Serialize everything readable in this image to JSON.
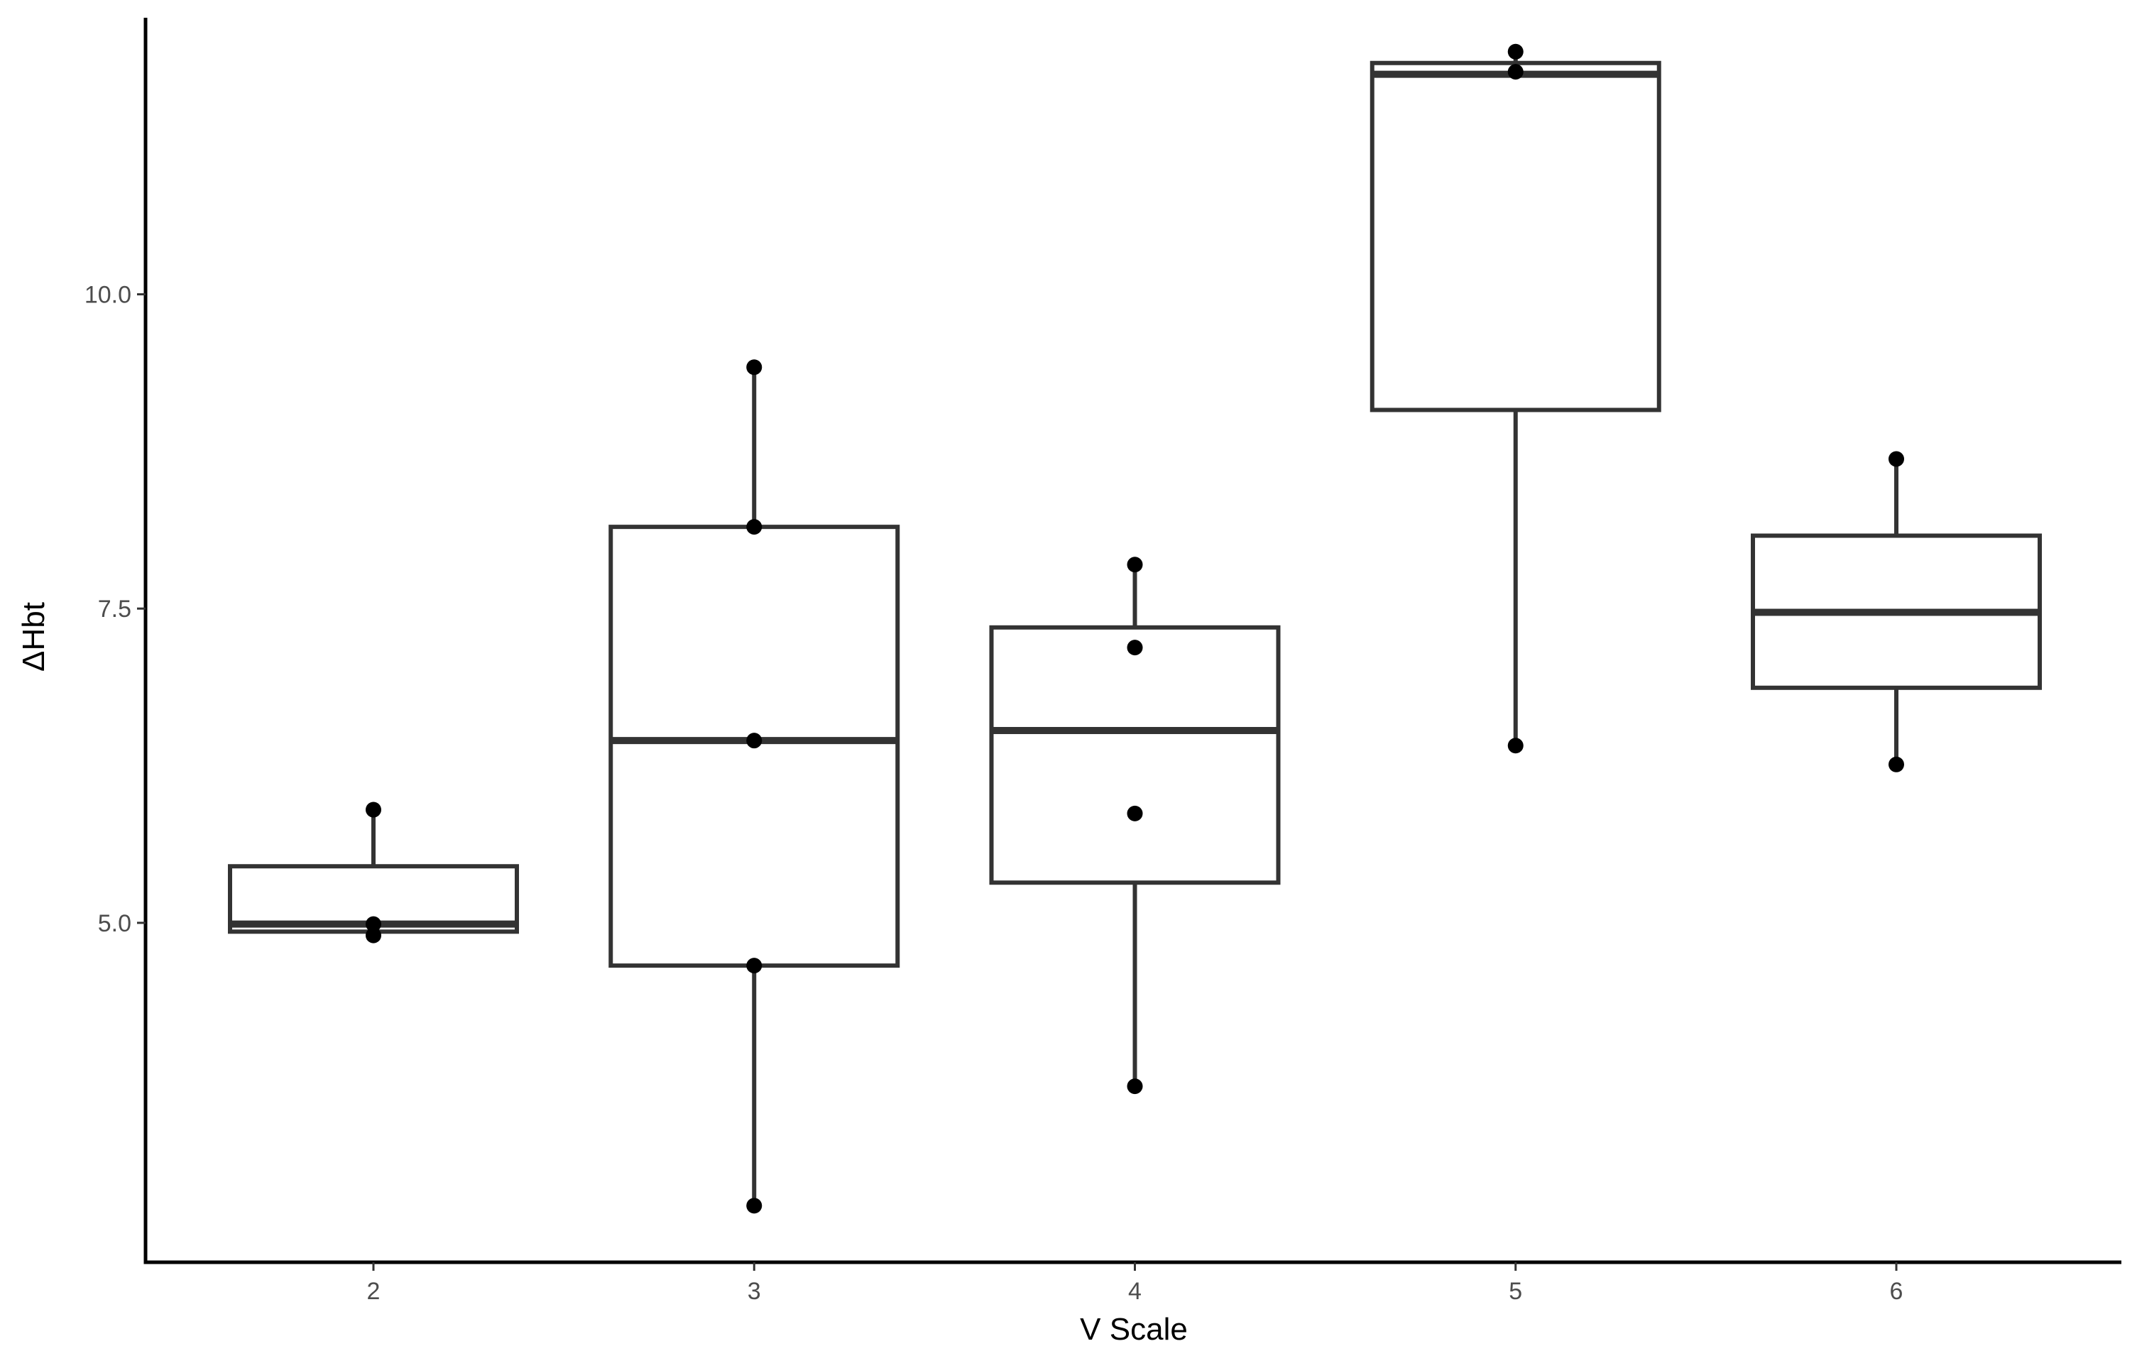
{
  "chart_data": {
    "type": "box",
    "xlabel": "V Scale",
    "ylabel": "ΔHbt",
    "categories": [
      "2",
      "3",
      "4",
      "5",
      "6"
    ],
    "y_ticks": [
      {
        "value": 5.0,
        "label": "5.0"
      },
      {
        "value": 7.5,
        "label": "7.5"
      },
      {
        "value": 10.0,
        "label": "10.0"
      }
    ],
    "ylim": [
      2.3,
      12.2
    ],
    "grid": false,
    "boxes": [
      {
        "category": "2",
        "whisker_low": 4.93,
        "q1": 4.93,
        "median": 4.99,
        "q3": 5.45,
        "whisker_high": 5.9,
        "points": [
          5.9,
          4.99,
          4.9
        ]
      },
      {
        "category": "3",
        "whisker_low": 2.75,
        "q1": 4.66,
        "median": 6.45,
        "q3": 8.15,
        "whisker_high": 9.42,
        "points": [
          9.42,
          8.15,
          6.45,
          4.66,
          2.75
        ]
      },
      {
        "category": "4",
        "whisker_low": 3.7,
        "q1": 5.32,
        "median": 6.53,
        "q3": 7.35,
        "whisker_high": 7.85,
        "points": [
          7.85,
          7.19,
          5.87,
          3.7
        ]
      },
      {
        "category": "5",
        "whisker_low": 6.41,
        "q1": 9.08,
        "median": 11.75,
        "q3": 11.84,
        "whisker_high": 11.93,
        "points": [
          11.93,
          11.77,
          6.41
        ]
      },
      {
        "category": "6",
        "whisker_low": 6.26,
        "q1": 6.87,
        "median": 7.47,
        "q3": 8.08,
        "whisker_high": 8.69,
        "points": [
          8.69,
          6.26
        ]
      }
    ]
  }
}
